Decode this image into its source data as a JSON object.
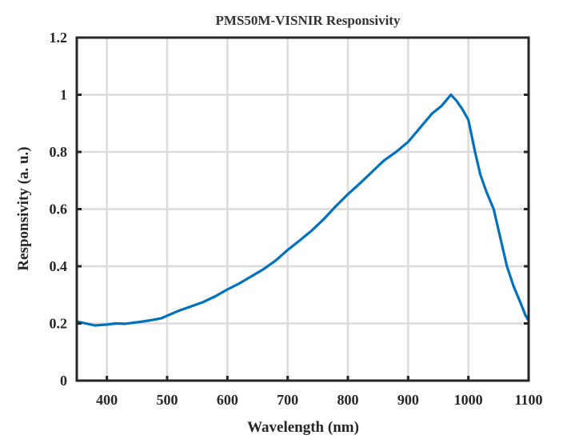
{
  "chart_data": {
    "type": "line",
    "title": "PMS50M-VISNIR Responsivity",
    "xlabel": "Wavelength (nm)",
    "ylabel": "Responsivity (a. u.)",
    "xlim": [
      350,
      1100
    ],
    "ylim": [
      0,
      1.2
    ],
    "xticks": [
      400,
      500,
      600,
      700,
      800,
      900,
      1000,
      1100
    ],
    "xtick_labels": [
      "400",
      "500",
      "600",
      "700",
      "800",
      "900",
      "1000",
      "1100"
    ],
    "yticks": [
      0,
      0.2,
      0.4,
      0.6,
      0.8,
      1,
      1.2
    ],
    "ytick_labels": [
      "0",
      "0.2",
      "0.4",
      "0.6",
      "0.8",
      "1",
      "1.2"
    ],
    "grid": true,
    "legend": "none",
    "series": [
      {
        "name": "Responsivity",
        "color": "#0072BD",
        "x": [
          350,
          365,
          380,
          400,
          415,
          430,
          445,
          460,
          475,
          490,
          500,
          520,
          540,
          560,
          580,
          600,
          620,
          640,
          660,
          680,
          700,
          720,
          740,
          760,
          780,
          800,
          820,
          840,
          860,
          880,
          900,
          920,
          940,
          955,
          965,
          971,
          980,
          990,
          1000,
          1011,
          1020,
          1030,
          1042,
          1053,
          1064,
          1075,
          1085,
          1095,
          1100
        ],
        "y": [
          0.207,
          0.2,
          0.193,
          0.196,
          0.2,
          0.199,
          0.203,
          0.207,
          0.212,
          0.218,
          0.227,
          0.245,
          0.26,
          0.275,
          0.295,
          0.319,
          0.34,
          0.365,
          0.39,
          0.42,
          0.457,
          0.49,
          0.525,
          0.565,
          0.61,
          0.652,
          0.69,
          0.73,
          0.77,
          0.8,
          0.835,
          0.885,
          0.935,
          0.96,
          0.985,
          1.0,
          0.98,
          0.95,
          0.912,
          0.8,
          0.72,
          0.66,
          0.6,
          0.5,
          0.4,
          0.33,
          0.28,
          0.228,
          0.21
        ]
      }
    ]
  }
}
